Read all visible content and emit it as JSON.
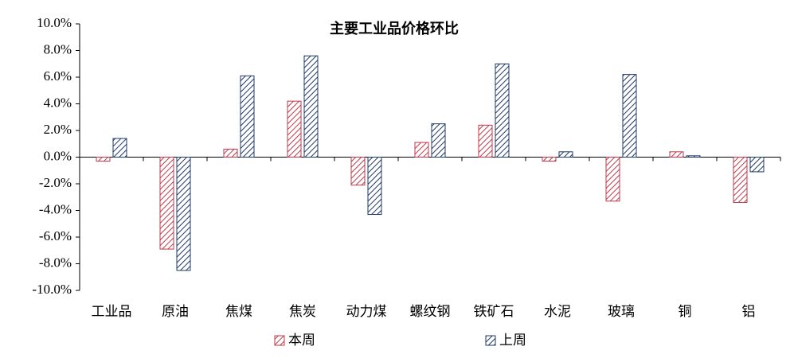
{
  "chart_data": {
    "type": "bar",
    "title": "主要工业品价格环比",
    "categories": [
      "工业品",
      "原油",
      "焦煤",
      "焦炭",
      "动力煤",
      "螺纹钢",
      "铁矿石",
      "水泥",
      "玻璃",
      "铜",
      "铝"
    ],
    "series": [
      {
        "name": "本周",
        "color": "#c0394b",
        "values": [
          -0.3,
          -6.9,
          0.6,
          4.2,
          -2.1,
          1.1,
          2.4,
          -0.3,
          -3.3,
          0.4,
          -3.4
        ]
      },
      {
        "name": "上周",
        "color": "#1f3864",
        "values": [
          1.4,
          -8.5,
          6.1,
          7.6,
          -4.3,
          2.5,
          7.0,
          0.4,
          6.2,
          0.1,
          -1.1
        ]
      }
    ],
    "ylim": [
      -10,
      10
    ],
    "yticks": [
      {
        "value": 10,
        "label": "10.0%"
      },
      {
        "value": 8,
        "label": "8.0%"
      },
      {
        "value": 6,
        "label": "6.0%"
      },
      {
        "value": 4,
        "label": "4.0%"
      },
      {
        "value": 2,
        "label": "2.0%"
      },
      {
        "value": 0,
        "label": "0.0%"
      },
      {
        "value": -2,
        "label": "-2.0%"
      },
      {
        "value": -4,
        "label": "-4.0%"
      },
      {
        "value": -6,
        "label": "-6.0%"
      },
      {
        "value": -8,
        "label": "-8.0%"
      },
      {
        "value": -10,
        "label": "-10.0%"
      }
    ],
    "grid": false,
    "legend": "bottom"
  }
}
